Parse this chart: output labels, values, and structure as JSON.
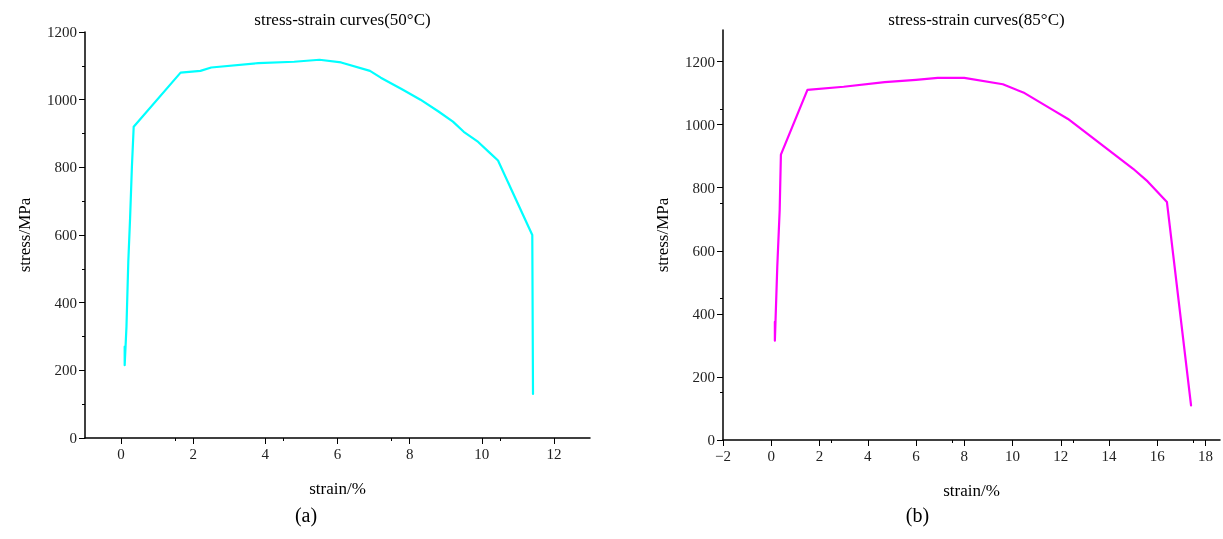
{
  "chart_data": [
    {
      "type": "line",
      "title": "stress-strain curves(50°C)",
      "xlabel": "strain/%",
      "ylabel": "stress/MPa",
      "annotations": [
        "(a)"
      ],
      "xlim": [
        -1,
        13
      ],
      "xticks": [
        0,
        2,
        4,
        6,
        8,
        10,
        12
      ],
      "ylim": [
        0,
        1200
      ],
      "yticks": [
        0,
        200,
        400,
        600,
        800,
        1000,
        1200
      ],
      "grid": false,
      "marker": "none",
      "line_style": "solid",
      "series": [
        {
          "color": "#00ffff",
          "x": [
            0.1,
            0.1,
            0.15,
            0.2,
            0.25,
            0.3,
            0.35,
            1.65,
            2.2,
            2.5,
            3.8,
            4.8,
            5.5,
            6.1,
            6.9,
            7.2,
            7.8,
            8.3,
            8.8,
            9.2,
            9.5,
            9.9,
            10.2,
            10.45,
            11.4,
            11.42
          ],
          "values": [
            270,
            215,
            330,
            520,
            650,
            800,
            920,
            1080,
            1085,
            1095,
            1108,
            1112,
            1118,
            1110,
            1085,
            1065,
            1030,
            1000,
            965,
            935,
            905,
            875,
            845,
            820,
            600,
            130
          ]
        }
      ]
    },
    {
      "type": "line",
      "title": "stress-strain curves(85°C)",
      "xlabel": "strain/%",
      "ylabel": "stress/MPa",
      "annotations": [
        "(b)"
      ],
      "xlim": [
        -2,
        18.6
      ],
      "xticks": [
        -2,
        0,
        2,
        4,
        6,
        8,
        10,
        12,
        14,
        16,
        18
      ],
      "ylim": [
        0,
        1300
      ],
      "yticks": [
        0,
        200,
        400,
        600,
        800,
        1000,
        1200
      ],
      "grid": false,
      "marker": "none",
      "line_style": "solid",
      "series": [
        {
          "color": "#ff00ff",
          "x": [
            0.15,
            0.15,
            0.25,
            0.35,
            0.4,
            1.5,
            3,
            4.7,
            6,
            6.9,
            8,
            9.6,
            10.5,
            11.7,
            12.3,
            15,
            15.6,
            16.4,
            17.4
          ],
          "values": [
            375,
            315,
            550,
            730,
            905,
            1110,
            1120,
            1135,
            1142,
            1148,
            1148,
            1128,
            1100,
            1045,
            1018,
            860,
            820,
            755,
            110
          ]
        }
      ]
    }
  ]
}
